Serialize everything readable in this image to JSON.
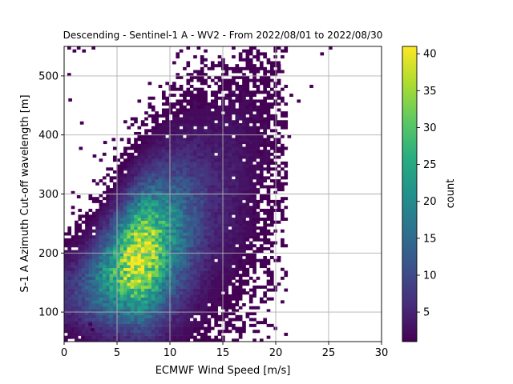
{
  "chart_data": {
    "type": "heatmap",
    "title": "Descending - Sentinel-1 A - WV2 - From 2022/08/01 to 2022/08/30",
    "xlabel": "ECMWF Wind Speed [m/s]",
    "ylabel": "S-1 A Azimuth Cut-off wavelength [m]",
    "xlim": [
      0,
      30
    ],
    "ylim": [
      50,
      550
    ],
    "x_ticks": [
      0,
      5,
      10,
      15,
      20,
      25,
      30
    ],
    "y_ticks": [
      100,
      200,
      300,
      400,
      500
    ],
    "grid": true,
    "bin_size": {
      "x": 0.33,
      "y": 5
    },
    "colorbar": {
      "label": "count",
      "colormap": "viridis",
      "range": [
        1,
        41
      ],
      "ticks": [
        5,
        10,
        15,
        20,
        25,
        30,
        35,
        40
      ]
    },
    "density_ridge": [
      {
        "x": 1,
        "y": 135,
        "count": 8
      },
      {
        "x": 2,
        "y": 140,
        "count": 12
      },
      {
        "x": 3,
        "y": 150,
        "count": 16
      },
      {
        "x": 4,
        "y": 160,
        "count": 22
      },
      {
        "x": 5,
        "y": 172,
        "count": 28
      },
      {
        "x": 6,
        "y": 182,
        "count": 36
      },
      {
        "x": 7,
        "y": 192,
        "count": 41
      },
      {
        "x": 8,
        "y": 200,
        "count": 38
      },
      {
        "x": 9,
        "y": 212,
        "count": 30
      },
      {
        "x": 10,
        "y": 225,
        "count": 22
      },
      {
        "x": 12,
        "y": 250,
        "count": 12
      },
      {
        "x": 14,
        "y": 280,
        "count": 6
      },
      {
        "x": 16,
        "y": 310,
        "count": 4
      },
      {
        "x": 18,
        "y": 340,
        "count": 2
      },
      {
        "x": 20,
        "y": 370,
        "count": 1
      }
    ],
    "outliers": [
      {
        "x": 0.3,
        "y": 545,
        "count": 1
      },
      {
        "x": 0.8,
        "y": 540,
        "count": 1
      },
      {
        "x": 1.2,
        "y": 545,
        "count": 1
      },
      {
        "x": 1.7,
        "y": 540,
        "count": 1
      },
      {
        "x": 2.6,
        "y": 545,
        "count": 1
      },
      {
        "x": 0.3,
        "y": 500,
        "count": 1
      },
      {
        "x": 0.4,
        "y": 457,
        "count": 1
      },
      {
        "x": 1.5,
        "y": 418,
        "count": 1
      },
      {
        "x": 1.4,
        "y": 375,
        "count": 1
      },
      {
        "x": 2.7,
        "y": 362,
        "count": 1
      },
      {
        "x": 3.7,
        "y": 385,
        "count": 1
      },
      {
        "x": 4.5,
        "y": 390,
        "count": 1
      },
      {
        "x": 1.2,
        "y": 293,
        "count": 1
      },
      {
        "x": 0.3,
        "y": 55,
        "count": 1
      },
      {
        "x": 1.6,
        "y": 55,
        "count": 1
      },
      {
        "x": 2.3,
        "y": 77,
        "count": 1
      },
      {
        "x": 2.5,
        "y": 68,
        "count": 1
      },
      {
        "x": 21.3,
        "y": 465,
        "count": 1
      },
      {
        "x": 23.2,
        "y": 480,
        "count": 1
      },
      {
        "x": 24.2,
        "y": 535,
        "count": 1
      },
      {
        "x": 20.1,
        "y": 520,
        "count": 1
      },
      {
        "x": 22.0,
        "y": 455,
        "count": 1
      },
      {
        "x": 19.2,
        "y": 448,
        "count": 1
      },
      {
        "x": 21.1,
        "y": 395,
        "count": 1
      },
      {
        "x": 19.3,
        "y": 380,
        "count": 1
      },
      {
        "x": 17.8,
        "y": 470,
        "count": 1
      },
      {
        "x": 16.5,
        "y": 455,
        "count": 1
      },
      {
        "x": 14.8,
        "y": 475,
        "count": 1
      },
      {
        "x": 25.0,
        "y": 545,
        "count": 1
      }
    ]
  }
}
